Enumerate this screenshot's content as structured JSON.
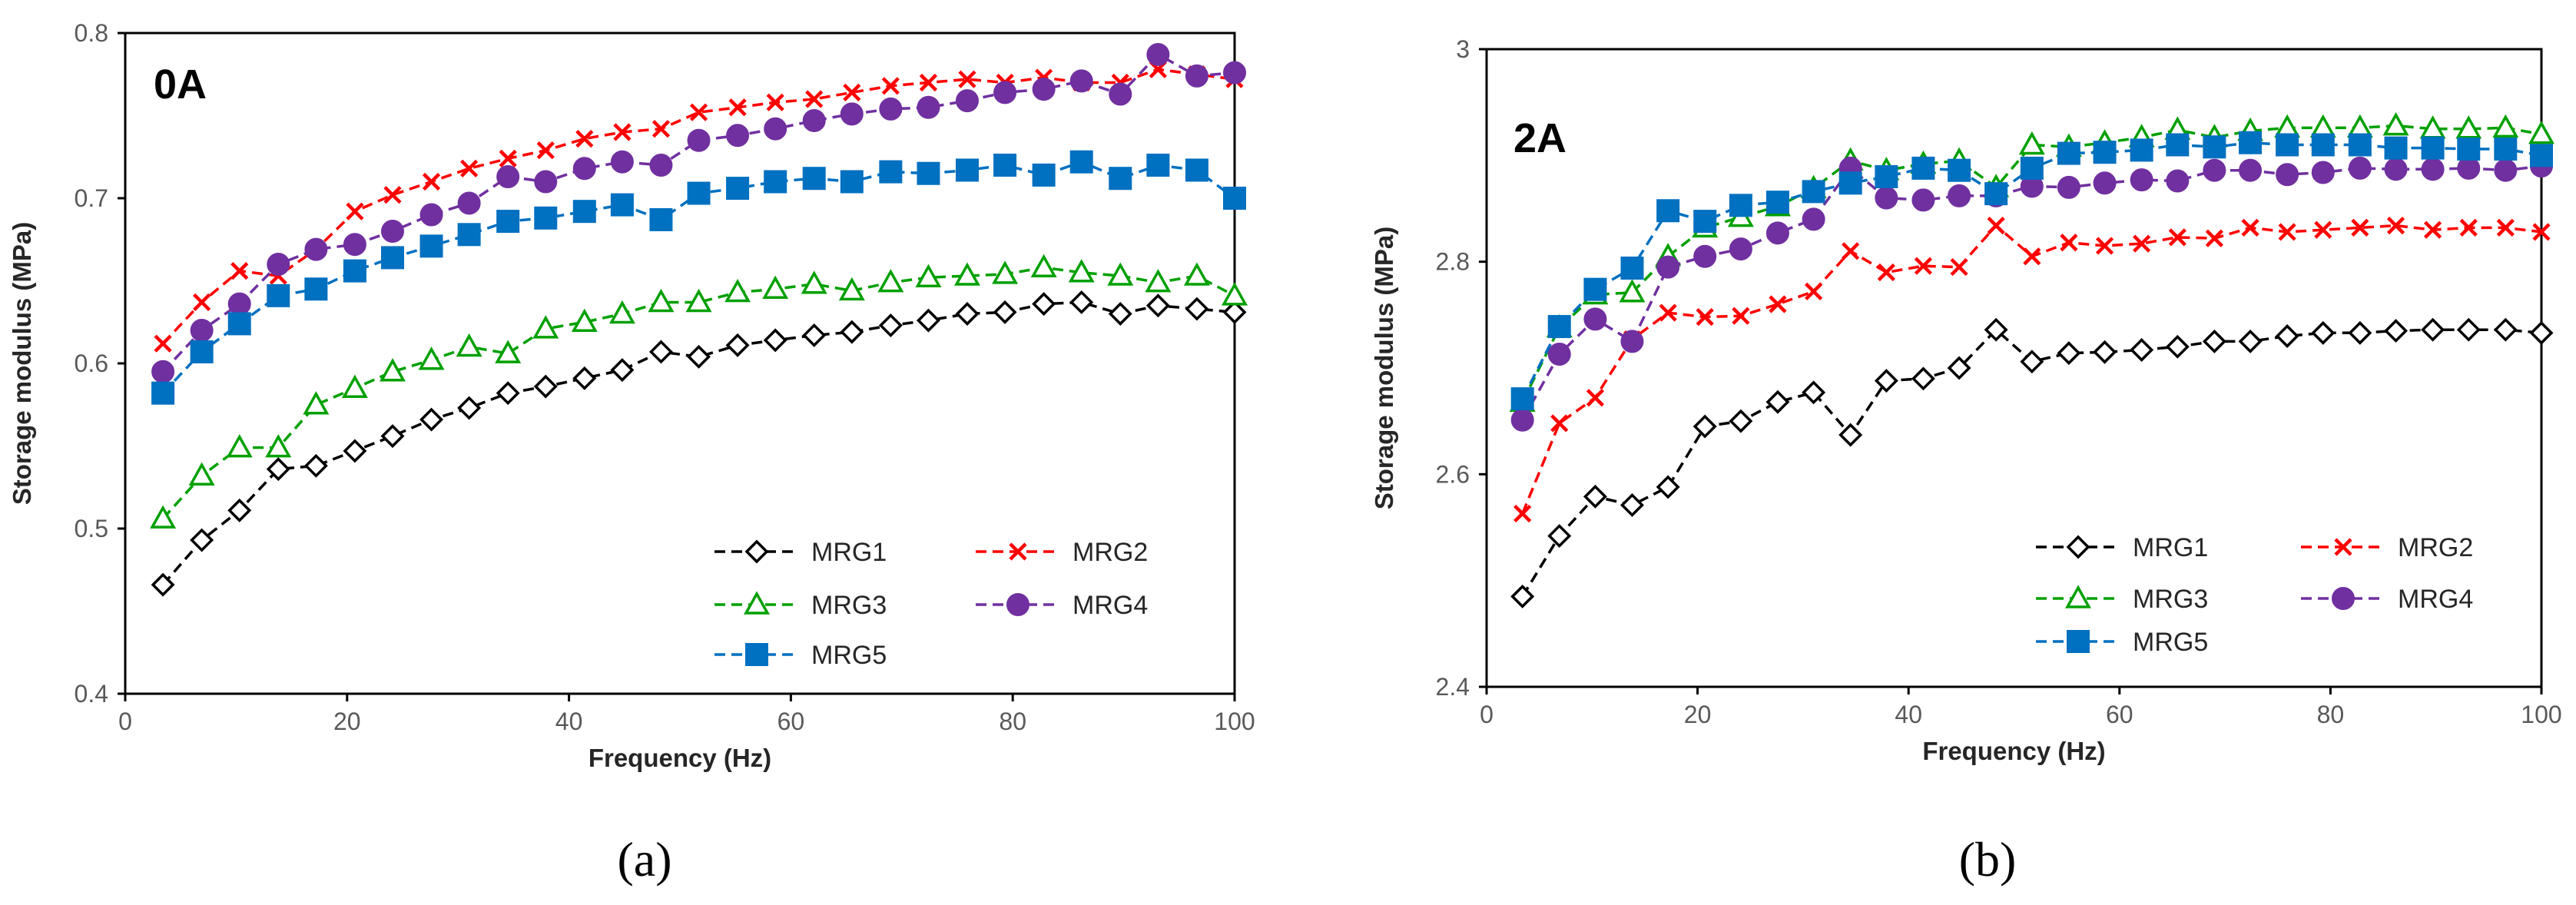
{
  "figure": {
    "styles": {
      "MRG1": {
        "color": "#000000",
        "marker": "diamond",
        "fill": "none"
      },
      "MRG2": {
        "color": "#ff0000",
        "marker": "cross",
        "fill": "none"
      },
      "MRG3": {
        "color": "#00a000",
        "marker": "triangle",
        "fill": "none"
      },
      "MRG4": {
        "color": "#7030a0",
        "marker": "circle",
        "fill": "#7030a0"
      },
      "MRG5": {
        "color": "#0070c0",
        "marker": "square",
        "fill": "#0070c0"
      }
    }
  },
  "chart_data": [
    {
      "type": "line",
      "panel_label": "0A",
      "caption": "(a)",
      "xlabel": "Frequency (Hz)",
      "ylabel": "Storage modulus (MPa)",
      "xlim": [
        0,
        100
      ],
      "ylim": [
        0.4,
        0.8
      ],
      "xticks": [
        "0",
        "20",
        "40",
        "60",
        "80",
        "100"
      ],
      "yticks": [
        "0.4",
        "0.5",
        "0.6",
        "0.7",
        "0.8"
      ],
      "legend_position": "bottom-right",
      "x": [
        3.4,
        6.9,
        10.3,
        13.8,
        17.2,
        20.7,
        24.1,
        27.6,
        31.0,
        34.5,
        37.9,
        41.4,
        44.8,
        48.3,
        51.7,
        55.2,
        58.6,
        62.1,
        65.5,
        69.0,
        72.4,
        75.9,
        79.3,
        82.8,
        86.2,
        89.7,
        93.1,
        96.6,
        100.0
      ],
      "series": [
        {
          "name": "MRG1",
          "values": [
            0.466,
            0.493,
            0.511,
            0.536,
            0.538,
            0.547,
            0.556,
            0.566,
            0.573,
            0.582,
            0.586,
            0.591,
            0.596,
            0.607,
            0.604,
            0.611,
            0.614,
            0.617,
            0.619,
            0.623,
            0.626,
            0.63,
            0.631,
            0.636,
            0.637,
            0.63,
            0.635,
            0.633,
            0.631
          ]
        },
        {
          "name": "MRG2",
          "values": [
            0.612,
            0.637,
            0.656,
            0.653,
            0.669,
            0.692,
            0.702,
            0.71,
            0.718,
            0.724,
            0.729,
            0.736,
            0.74,
            0.742,
            0.752,
            0.755,
            0.758,
            0.76,
            0.764,
            0.768,
            0.77,
            0.772,
            0.77,
            0.773,
            0.77,
            0.77,
            0.778,
            0.775,
            0.772
          ]
        },
        {
          "name": "MRG3",
          "values": [
            0.506,
            0.532,
            0.549,
            0.549,
            0.575,
            0.585,
            0.595,
            0.602,
            0.61,
            0.606,
            0.621,
            0.625,
            0.63,
            0.637,
            0.637,
            0.643,
            0.645,
            0.648,
            0.644,
            0.649,
            0.652,
            0.653,
            0.654,
            0.658,
            0.655,
            0.653,
            0.649,
            0.653,
            0.641
          ]
        },
        {
          "name": "MRG4",
          "values": [
            0.595,
            0.62,
            0.636,
            0.66,
            0.669,
            0.672,
            0.68,
            0.69,
            0.697,
            0.713,
            0.71,
            0.718,
            0.722,
            0.72,
            0.735,
            0.738,
            0.742,
            0.747,
            0.751,
            0.754,
            0.755,
            0.759,
            0.764,
            0.766,
            0.771,
            0.763,
            0.787,
            0.774,
            0.776
          ]
        },
        {
          "name": "MRG5",
          "values": [
            0.582,
            0.607,
            0.624,
            0.641,
            0.645,
            0.656,
            0.664,
            0.671,
            0.678,
            0.686,
            0.688,
            0.692,
            0.696,
            0.687,
            0.703,
            0.706,
            0.71,
            0.712,
            0.71,
            0.716,
            0.715,
            0.717,
            0.72,
            0.714,
            0.722,
            0.712,
            0.72,
            0.717,
            0.7
          ]
        }
      ]
    },
    {
      "type": "line",
      "panel_label": "2A",
      "caption": "(b)",
      "xlabel": "Frequency (Hz)",
      "ylabel": "Storage modulus (MPa)",
      "xlim": [
        0,
        100
      ],
      "ylim": [
        2.4,
        3.0
      ],
      "xticks": [
        "0",
        "20",
        "40",
        "60",
        "80",
        "100"
      ],
      "yticks": [
        "2.4",
        "2.6",
        "2.8",
        "3"
      ],
      "legend_position": "bottom-right",
      "x": [
        3.4,
        6.9,
        10.3,
        13.8,
        17.2,
        20.7,
        24.1,
        27.6,
        31.0,
        34.5,
        37.9,
        41.4,
        44.8,
        48.3,
        51.7,
        55.2,
        58.6,
        62.1,
        65.5,
        69.0,
        72.4,
        75.9,
        79.3,
        82.8,
        86.2,
        89.7,
        93.1,
        96.6,
        100.0
      ],
      "series": [
        {
          "name": "MRG1",
          "values": [
            2.485,
            2.542,
            2.579,
            2.571,
            2.588,
            2.645,
            2.65,
            2.668,
            2.677,
            2.637,
            2.688,
            2.69,
            2.7,
            2.736,
            2.706,
            2.714,
            2.715,
            2.717,
            2.72,
            2.725,
            2.725,
            2.73,
            2.733,
            2.733,
            2.735,
            2.736,
            2.736,
            2.736,
            2.733
          ]
        },
        {
          "name": "MRG2",
          "values": [
            2.563,
            2.648,
            2.672,
            2.727,
            2.752,
            2.748,
            2.749,
            2.76,
            2.772,
            2.81,
            2.79,
            2.796,
            2.795,
            2.834,
            2.805,
            2.818,
            2.815,
            2.817,
            2.823,
            2.822,
            2.832,
            2.828,
            2.83,
            2.832,
            2.834,
            2.83,
            2.832,
            2.832,
            2.828
          ]
        },
        {
          "name": "MRG3",
          "values": [
            2.668,
            2.738,
            2.769,
            2.771,
            2.805,
            2.832,
            2.842,
            2.852,
            2.869,
            2.895,
            2.886,
            2.892,
            2.895,
            2.87,
            2.91,
            2.908,
            2.912,
            2.917,
            2.924,
            2.917,
            2.923,
            2.926,
            2.926,
            2.926,
            2.928,
            2.925,
            2.925,
            2.926,
            2.92
          ]
        },
        {
          "name": "MRG4",
          "values": [
            2.651,
            2.713,
            2.746,
            2.725,
            2.795,
            2.805,
            2.812,
            2.827,
            2.84,
            2.888,
            2.86,
            2.858,
            2.862,
            2.862,
            2.871,
            2.87,
            2.874,
            2.877,
            2.876,
            2.886,
            2.886,
            2.882,
            2.884,
            2.888,
            2.887,
            2.887,
            2.888,
            2.886,
            2.89
          ]
        },
        {
          "name": "MRG5",
          "values": [
            2.671,
            2.739,
            2.774,
            2.794,
            2.848,
            2.838,
            2.853,
            2.856,
            2.866,
            2.874,
            2.88,
            2.888,
            2.886,
            2.864,
            2.888,
            2.902,
            2.903,
            2.905,
            2.91,
            2.908,
            2.912,
            2.91,
            2.91,
            2.91,
            2.907,
            2.907,
            2.906,
            2.906,
            2.9
          ]
        }
      ]
    }
  ]
}
